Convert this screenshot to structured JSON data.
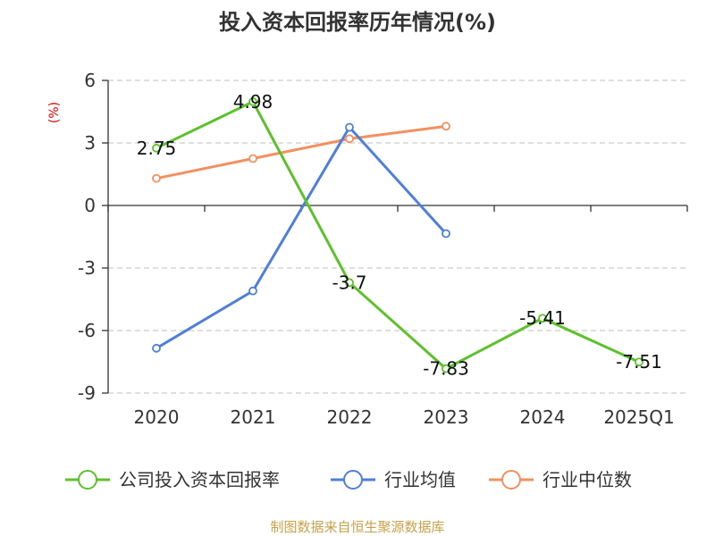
{
  "chart_data": {
    "type": "line",
    "title": "投入资本回报率历年情况(%)",
    "ylabel": "(%)",
    "categories": [
      "2020",
      "2021",
      "2022",
      "2023",
      "2024",
      "2025Q1"
    ],
    "ylim": [
      -9,
      6
    ],
    "yticks": [
      6,
      3,
      0,
      -3,
      -6,
      -9
    ],
    "grid": true,
    "legend_position": "bottom",
    "series": [
      {
        "name": "公司投入资本回报率",
        "color": "#5cc12b",
        "values": [
          2.75,
          4.98,
          -3.7,
          -7.83,
          -5.41,
          -7.51
        ],
        "labels": [
          "2.75",
          "4.98",
          "-3.7",
          "-7.83",
          "-5.41",
          "-7.51"
        ],
        "show_labels": true
      },
      {
        "name": "行业均值",
        "color": "#4f7fd9",
        "values": [
          -6.85,
          -4.1,
          3.75,
          -1.35,
          null,
          null
        ],
        "show_labels": false
      },
      {
        "name": "行业中位数",
        "color": "#f39060",
        "values": [
          1.3,
          2.25,
          3.2,
          3.8,
          null,
          null
        ],
        "show_labels": false
      }
    ]
  },
  "source": "制图数据来自恒生聚源数据库"
}
